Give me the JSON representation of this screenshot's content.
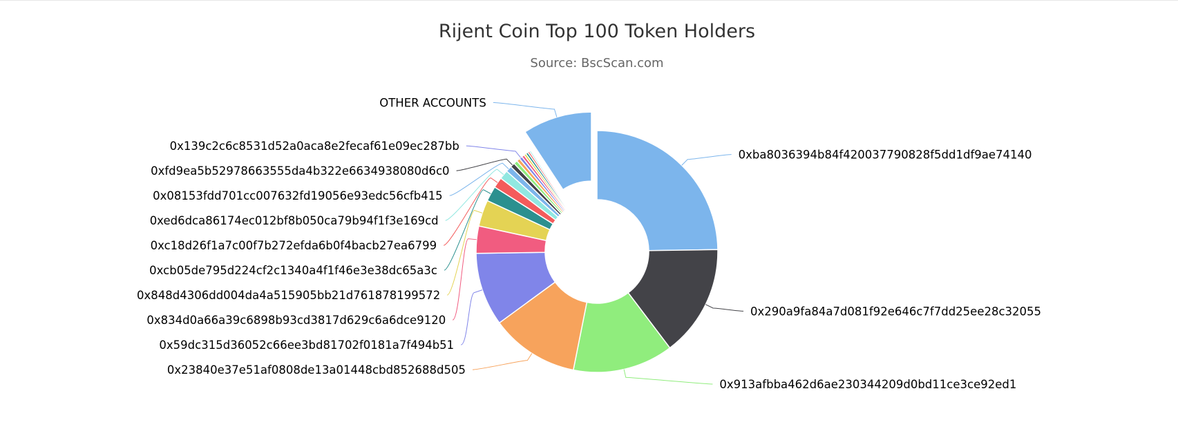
{
  "chart_data": {
    "type": "pie",
    "variant": "donut",
    "title": "Rijent Coin Top 100 Token Holders",
    "subtitle": "Source: BscScan.com",
    "unit": "percent",
    "slices": [
      {
        "label": "0xba8036394b84f420037790828f5dd1df9ae74140",
        "value": 24.5,
        "color": "#7cb5ec"
      },
      {
        "label": "0x290a9fa84a7d081f92e646c7f7dd25ee28c32055",
        "value": 14.8,
        "color": "#434348"
      },
      {
        "label": "0x913afbba462d6ae230344209d0bd11ce3ce92ed1",
        "value": 13.3,
        "color": "#90ed7d"
      },
      {
        "label": "0x23840e37e51af0808de13a01448cbd852688d505",
        "value": 11.7,
        "color": "#f7a35c"
      },
      {
        "label": "0x59dc315d36052c66ee3bd81702f0181a7f494b51",
        "value": 9.7,
        "color": "#8085e9"
      },
      {
        "label": "0x834d0a66a39c6898b93cd3817d629c6a6dce9120",
        "value": 3.6,
        "color": "#f15c80"
      },
      {
        "label": "0x848d4306dd004da4a515905bb21d761878199572",
        "value": 3.5,
        "color": "#e4d354"
      },
      {
        "label": "0xcb05de795d224cf2c1340a4f1f46e3e38dc65a3c",
        "value": 2.0,
        "color": "#2b908f"
      },
      {
        "label": "0xc18d26f1a7c00f7b272efda6b0f4bacb27ea6799",
        "value": 1.4,
        "color": "#f45b5b"
      },
      {
        "label": "0xed6dca86174ec012bf8b050ca79b94f1f3e169cd",
        "value": 1.2,
        "color": "#91e8e1"
      },
      {
        "label": "0x08153fdd701cc007632fd19056e93edc56cfb415",
        "value": 0.8,
        "color": "#7cb5ec"
      },
      {
        "label": "0xfd9ea5b52978663555da4b322e6634938080d6c0",
        "value": 0.6,
        "color": "#434348"
      },
      {
        "label": "",
        "value": 0.5,
        "color": "#90ed7d"
      },
      {
        "label": "",
        "value": 0.45,
        "color": "#f7a35c"
      },
      {
        "label": "0x139c2c6c8531d52a0aca8e2fecaf61e09ec287bb",
        "value": 0.4,
        "color": "#8085e9"
      },
      {
        "label": "",
        "value": 0.35,
        "color": "#f15c80"
      },
      {
        "label": "",
        "value": 0.3,
        "color": "#e4d354"
      },
      {
        "label": "",
        "value": 0.3,
        "color": "#2b908f"
      },
      {
        "label": "",
        "value": 0.25,
        "color": "#f45b5b"
      },
      {
        "label": "",
        "value": 0.2,
        "color": "#91e8e1"
      },
      {
        "label": "OTHER ACCOUNTS",
        "value": 9.15,
        "color": "#7cb5ec",
        "sliced": true
      }
    ]
  }
}
